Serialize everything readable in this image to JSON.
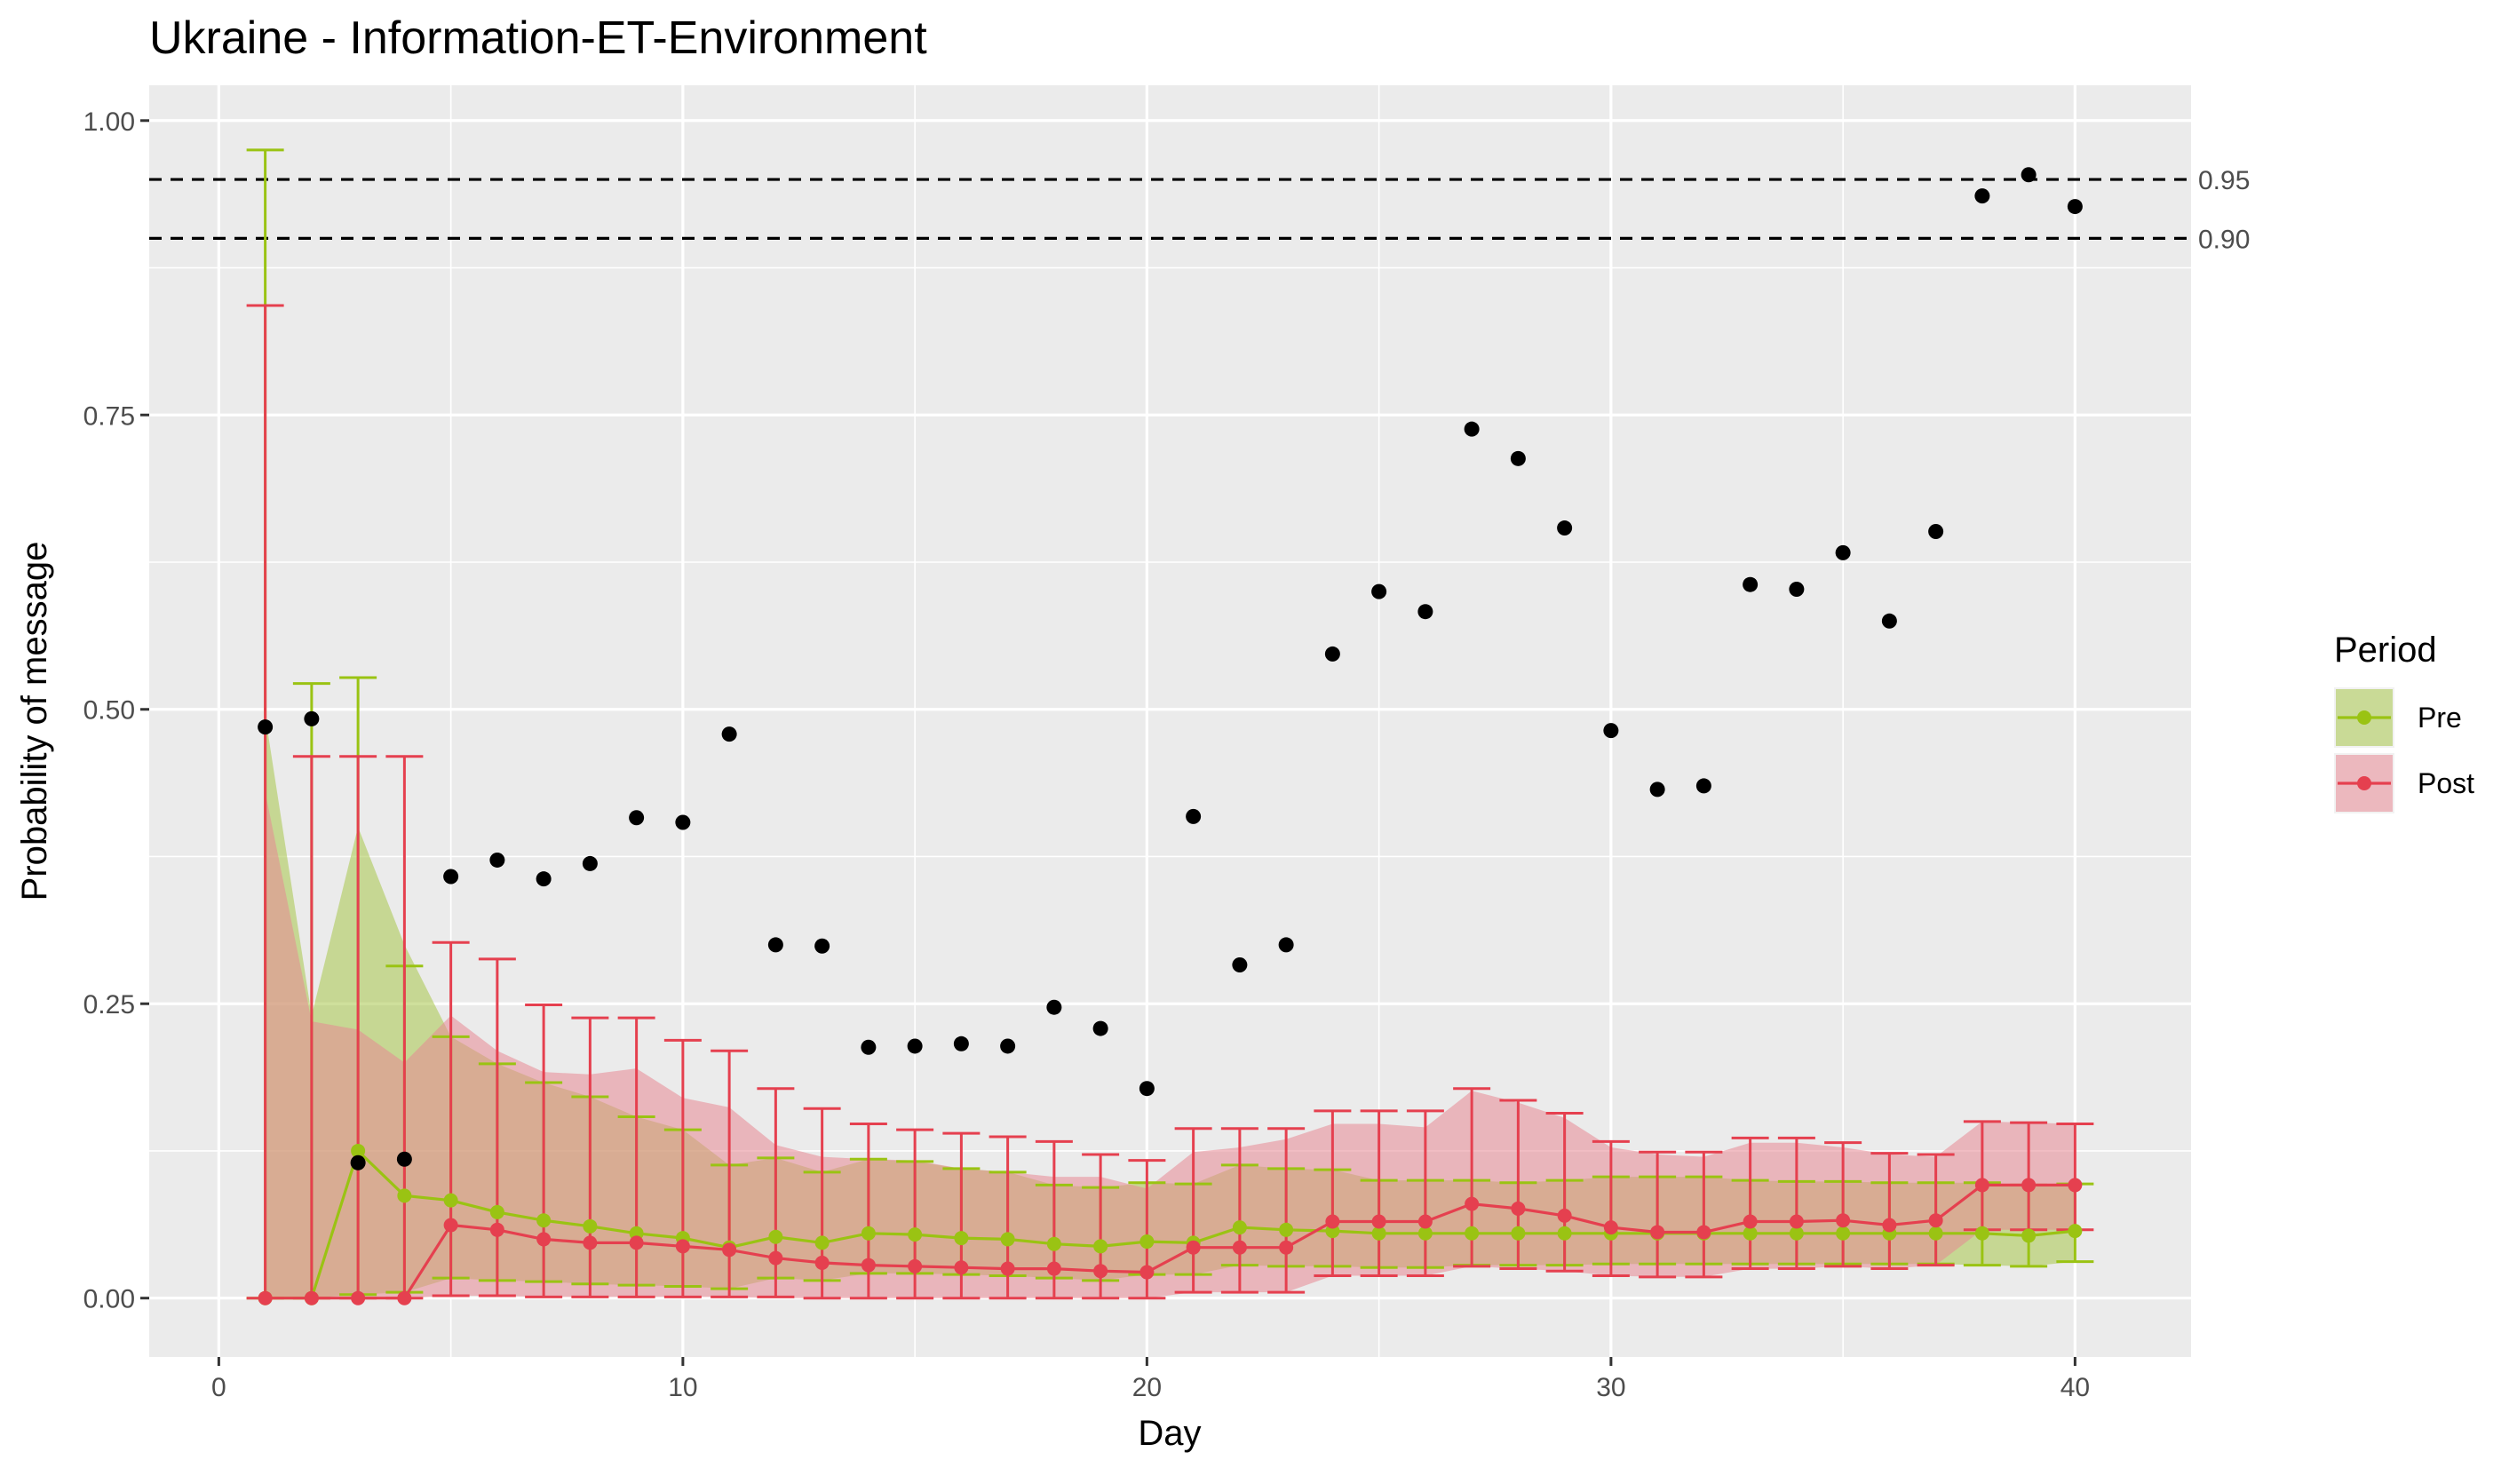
{
  "chart_data": {
    "type": "line",
    "title": "Ukraine - Information-ET-Environment",
    "xlabel": "Day",
    "ylabel": "Probability of message",
    "xlim": [
      -1.5,
      42.5
    ],
    "ylim": [
      -0.05,
      1.03
    ],
    "x_ticks": [
      0,
      10,
      20,
      30,
      40
    ],
    "x_tick_labels": [
      "0",
      "10",
      "20",
      "30",
      "40"
    ],
    "y_ticks": [
      0,
      0.25,
      0.5,
      0.75,
      1.0
    ],
    "y_tick_labels": [
      "0.00",
      "0.25",
      "0.50",
      "0.75",
      "1.00"
    ],
    "grid": true,
    "reference_lines": [
      {
        "y": 0.95,
        "label": "0.95",
        "style": "dashed"
      },
      {
        "y": 0.9,
        "label": "0.90",
        "style": "dashed"
      }
    ],
    "legend": {
      "title": "Period",
      "position": "right"
    },
    "x": [
      1,
      2,
      3,
      4,
      5,
      6,
      7,
      8,
      9,
      10,
      11,
      12,
      13,
      14,
      15,
      16,
      17,
      18,
      19,
      20,
      21,
      22,
      23,
      24,
      25,
      26,
      27,
      28,
      29,
      30,
      31,
      32,
      33,
      34,
      35,
      36,
      37,
      38,
      39,
      40
    ],
    "observed": [
      0.485,
      0.492,
      0.115,
      0.118,
      0.358,
      0.372,
      0.356,
      0.369,
      0.408,
      0.404,
      0.479,
      0.3,
      0.299,
      0.213,
      0.214,
      0.216,
      0.214,
      0.247,
      0.229,
      0.178,
      0.409,
      0.283,
      0.3,
      0.547,
      0.6,
      0.583,
      0.738,
      0.713,
      0.654,
      0.482,
      0.432,
      0.435,
      0.606,
      0.602,
      0.633,
      0.575,
      0.651,
      0.936,
      0.954,
      0.927
    ],
    "series": [
      {
        "name": "Pre",
        "color": "#9ac313",
        "fill": "#a8c74a",
        "values": [
          0.0,
          0.0,
          0.125,
          0.087,
          0.083,
          0.073,
          0.066,
          0.061,
          0.055,
          0.051,
          0.043,
          0.052,
          0.047,
          0.055,
          0.054,
          0.051,
          0.05,
          0.046,
          0.044,
          0.048,
          0.047,
          0.06,
          0.058,
          0.057,
          0.055,
          0.055,
          0.055,
          0.055,
          0.055,
          0.055,
          0.055,
          0.055,
          0.055,
          0.055,
          0.055,
          0.055,
          0.055,
          0.055,
          0.053,
          0.057
        ],
        "lower": [
          0.0,
          0.0,
          0.003,
          0.005,
          0.017,
          0.015,
          0.014,
          0.012,
          0.011,
          0.01,
          0.008,
          0.017,
          0.015,
          0.021,
          0.021,
          0.02,
          0.019,
          0.017,
          0.015,
          0.02,
          0.02,
          0.028,
          0.027,
          0.027,
          0.026,
          0.026,
          0.028,
          0.028,
          0.028,
          0.029,
          0.029,
          0.029,
          0.029,
          0.029,
          0.029,
          0.029,
          0.029,
          0.028,
          0.027,
          0.031
        ],
        "upper": [
          0.975,
          0.522,
          0.527,
          0.282,
          0.222,
          0.199,
          0.183,
          0.171,
          0.154,
          0.143,
          0.113,
          0.119,
          0.107,
          0.118,
          0.116,
          0.11,
          0.107,
          0.096,
          0.094,
          0.098,
          0.097,
          0.113,
          0.11,
          0.109,
          0.1,
          0.1,
          0.1,
          0.098,
          0.1,
          0.103,
          0.103,
          0.103,
          0.1,
          0.099,
          0.099,
          0.098,
          0.098,
          0.098,
          0.096,
          0.097
        ],
        "ribbon_upper": [
          0.495,
          0.24,
          0.4,
          0.3,
          0.222,
          0.199,
          0.183,
          0.171,
          0.154,
          0.143,
          0.113,
          0.119,
          0.107,
          0.118,
          0.116,
          0.11,
          0.107,
          0.096,
          0.094,
          0.098,
          0.097,
          0.113,
          0.11,
          0.109,
          0.1,
          0.1,
          0.1,
          0.098,
          0.1,
          0.103,
          0.103,
          0.103,
          0.1,
          0.099,
          0.099,
          0.098,
          0.098,
          0.098,
          0.096,
          0.097
        ]
      },
      {
        "name": "Post",
        "color": "#e5404f",
        "fill": "#e88894",
        "values": [
          0.0,
          0.0,
          0.0,
          0.0,
          0.062,
          0.058,
          0.05,
          0.047,
          0.047,
          0.044,
          0.041,
          0.034,
          0.03,
          0.028,
          0.027,
          0.026,
          0.025,
          0.025,
          0.023,
          0.022,
          0.043,
          0.043,
          0.043,
          0.065,
          0.065,
          0.065,
          0.08,
          0.076,
          0.07,
          0.06,
          0.056,
          0.056,
          0.065,
          0.065,
          0.066,
          0.062,
          0.066,
          0.096,
          0.096,
          0.096
        ],
        "lower": [
          0.0,
          0.0,
          0.0,
          0.0,
          0.002,
          0.002,
          0.001,
          0.001,
          0.001,
          0.001,
          0.001,
          0.001,
          0.0,
          0.0,
          0.0,
          0.0,
          0.0,
          0.0,
          0.0,
          0.0,
          0.005,
          0.005,
          0.005,
          0.019,
          0.019,
          0.019,
          0.027,
          0.025,
          0.023,
          0.019,
          0.018,
          0.018,
          0.025,
          0.025,
          0.027,
          0.025,
          0.028,
          0.058,
          0.058,
          0.058
        ],
        "upper": [
          0.843,
          0.46,
          0.46,
          0.46,
          0.302,
          0.288,
          0.249,
          0.238,
          0.238,
          0.219,
          0.21,
          0.178,
          0.161,
          0.148,
          0.143,
          0.14,
          0.137,
          0.133,
          0.122,
          0.117,
          0.144,
          0.144,
          0.144,
          0.159,
          0.159,
          0.159,
          0.178,
          0.168,
          0.157,
          0.133,
          0.124,
          0.124,
          0.136,
          0.136,
          0.132,
          0.123,
          0.122,
          0.15,
          0.149,
          0.148
        ],
        "ribbon_upper": [
          0.43,
          0.235,
          0.228,
          0.2,
          0.24,
          0.21,
          0.192,
          0.19,
          0.195,
          0.17,
          0.162,
          0.13,
          0.12,
          0.118,
          0.117,
          0.11,
          0.107,
          0.103,
          0.103,
          0.093,
          0.124,
          0.128,
          0.135,
          0.148,
          0.148,
          0.145,
          0.176,
          0.166,
          0.153,
          0.128,
          0.122,
          0.12,
          0.132,
          0.132,
          0.128,
          0.122,
          0.12,
          0.15,
          0.149,
          0.148
        ],
        "ribbon_lower": [
          0.0,
          0.0,
          0.0,
          0.0,
          0.002,
          0.002,
          0.001,
          0.001,
          0.001,
          0.001,
          0.001,
          0.0,
          0.0,
          0.0,
          0.0,
          0.0,
          0.0,
          0.0,
          0.0,
          0.0,
          0.005,
          0.005,
          0.005,
          0.019,
          0.019,
          0.019,
          0.027,
          0.025,
          0.023,
          0.019,
          0.018,
          0.018,
          0.025,
          0.025,
          0.027,
          0.025,
          0.028,
          0.058,
          0.058,
          0.058
        ]
      }
    ]
  }
}
